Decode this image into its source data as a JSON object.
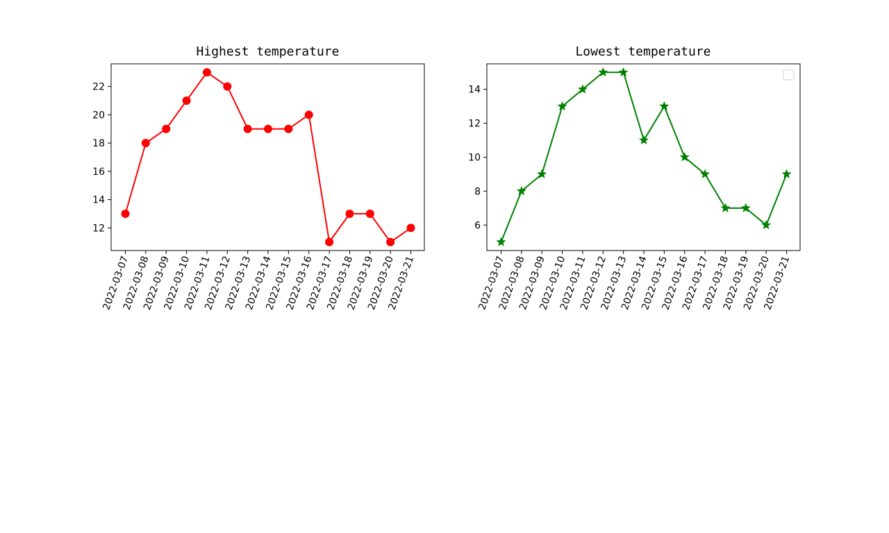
{
  "chart_data": [
    {
      "type": "line",
      "title": "Highest temperature",
      "xlabel": "",
      "ylabel": "",
      "x": [
        "2022-03-07",
        "2022-03-08",
        "2022-03-09",
        "2022-03-10",
        "2022-03-11",
        "2022-03-12",
        "2022-03-13",
        "2022-03-14",
        "2022-03-15",
        "2022-03-16",
        "2022-03-17",
        "2022-03-18",
        "2022-03-19",
        "2022-03-20",
        "2022-03-21"
      ],
      "y_ticks": [
        12,
        14,
        16,
        18,
        20,
        22
      ],
      "ylim": [
        10.4,
        23.6
      ],
      "series": [
        {
          "values": [
            13,
            18,
            19,
            21,
            23,
            22,
            19,
            19,
            19,
            20,
            11,
            13,
            13,
            11,
            12
          ],
          "color": "#ff0000",
          "marker": "circle"
        }
      ],
      "legend": "none",
      "grid": false
    },
    {
      "type": "line",
      "title": "Lowest temperature",
      "xlabel": "",
      "ylabel": "",
      "x": [
        "2022-03-07",
        "2022-03-08",
        "2022-03-09",
        "2022-03-10",
        "2022-03-11",
        "2022-03-12",
        "2022-03-13",
        "2022-03-14",
        "2022-03-15",
        "2022-03-16",
        "2022-03-17",
        "2022-03-18",
        "2022-03-19",
        "2022-03-20",
        "2022-03-21"
      ],
      "y_ticks": [
        6,
        8,
        10,
        12,
        14
      ],
      "ylim": [
        4.5,
        15.5
      ],
      "series": [
        {
          "values": [
            5,
            8,
            9,
            13,
            14,
            15,
            15,
            11,
            13,
            10,
            9,
            7,
            7,
            6,
            9
          ],
          "color": "#008000",
          "marker": "star"
        }
      ],
      "legend": "top-right (empty)",
      "grid": false
    }
  ]
}
